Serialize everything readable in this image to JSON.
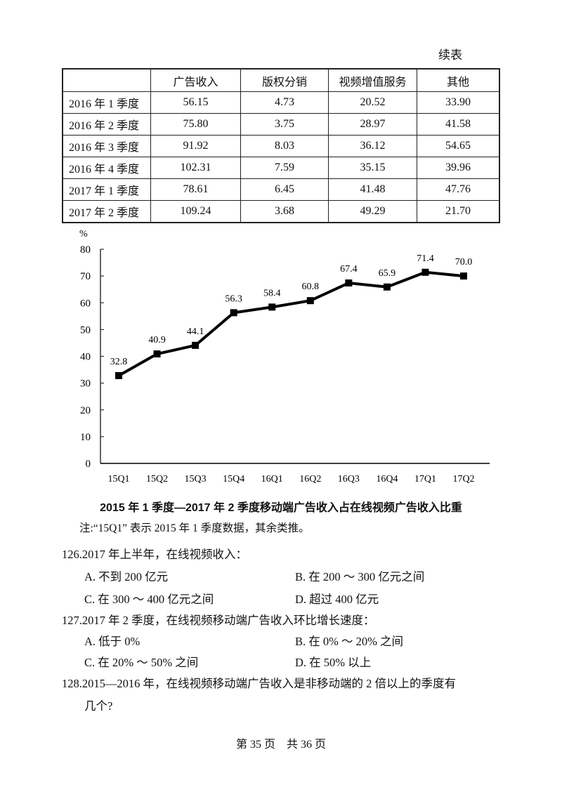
{
  "continued_label": "续表",
  "table": {
    "headers": [
      "",
      "广告收入",
      "版权分销",
      "视频增值服务",
      "其他"
    ],
    "rows": [
      {
        "period": "2016 年 1 季度",
        "ad": "56.15",
        "copyright": "4.73",
        "vas": "20.52",
        "other": "33.90"
      },
      {
        "period": "2016 年 2 季度",
        "ad": "75.80",
        "copyright": "3.75",
        "vas": "28.97",
        "other": "41.58"
      },
      {
        "period": "2016 年 3 季度",
        "ad": "91.92",
        "copyright": "8.03",
        "vas": "36.12",
        "other": "54.65"
      },
      {
        "period": "2016 年 4 季度",
        "ad": "102.31",
        "copyright": "7.59",
        "vas": "35.15",
        "other": "39.96"
      },
      {
        "period": "2017 年 1 季度",
        "ad": "78.61",
        "copyright": "6.45",
        "vas": "41.48",
        "other": "47.76"
      },
      {
        "period": "2017 年 2 季度",
        "ad": "109.24",
        "copyright": "3.68",
        "vas": "49.29",
        "other": "21.70"
      }
    ]
  },
  "chart_data": {
    "type": "line",
    "title": "2015 年 1 季度—2017 年 2 季度移动端广告收入占在线视频广告收入比重",
    "xlabel": "",
    "ylabel": "%",
    "categories": [
      "15Q1",
      "15Q2",
      "15Q3",
      "15Q4",
      "16Q1",
      "16Q2",
      "16Q3",
      "16Q4",
      "17Q1",
      "17Q2"
    ],
    "values": [
      32.8,
      40.9,
      44.1,
      56.3,
      58.4,
      60.8,
      67.4,
      65.9,
      71.4,
      70.0
    ],
    "value_labels": [
      "32.8",
      "40.9",
      "44.1",
      "56.3",
      "58.4",
      "60.8",
      "67.4",
      "65.9",
      "71.4",
      "70.0"
    ],
    "yticks": [
      "0",
      "10",
      "20",
      "30",
      "40",
      "50",
      "60",
      "70",
      "80"
    ],
    "ylim": [
      0,
      80
    ],
    "grid": false,
    "legend": null,
    "marker": "square",
    "line_color": "#000000"
  },
  "note": "注:“15Q1” 表示 2015 年 1 季度数据，其余类推。",
  "questions": [
    {
      "stem": "126.2017 年上半年，在线视频收入：",
      "options": [
        "A. 不到 200 亿元",
        "B. 在 200 ～ 300 亿元之间",
        "C. 在 300 ～ 400 亿元之间",
        "D. 超过 400 亿元"
      ]
    },
    {
      "stem": "127.2017 年 2 季度，在线视频移动端广告收入环比增长速度：",
      "options": [
        "A. 低于 0%",
        "B. 在 0% ～ 20% 之间",
        "C. 在 20% ～ 50% 之间",
        "D. 在 50% 以上"
      ]
    },
    {
      "stem_line1": "128.2015—2016 年，在线视频移动端广告收入是非移动端的 2 倍以上的季度有",
      "stem_line2": "几个?"
    }
  ],
  "footer": "第 35 页　共 36 页"
}
